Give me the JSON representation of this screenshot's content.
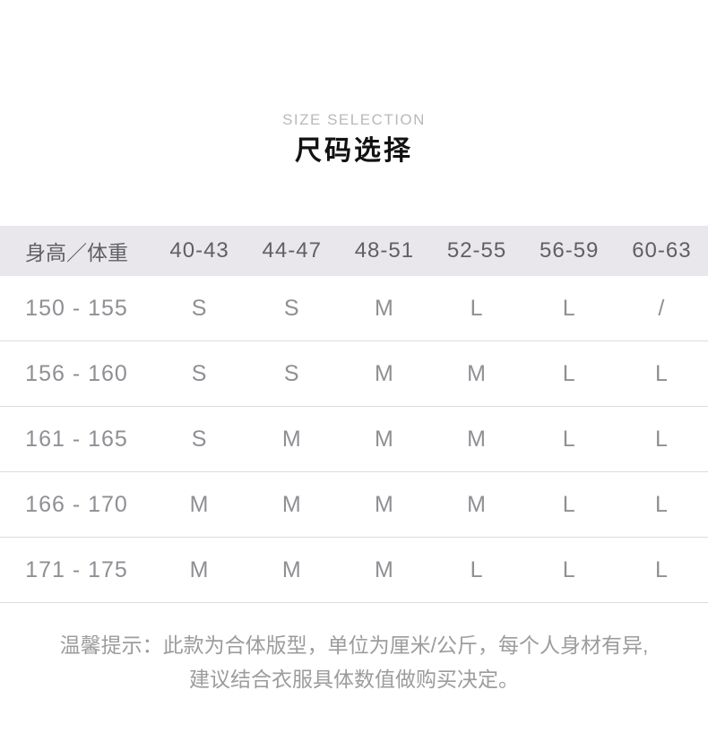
{
  "header": {
    "subtitle": "SIZE SELECTION",
    "title": "尺码选择"
  },
  "table": {
    "columns": [
      "身高／体重",
      "40-43",
      "44-47",
      "48-51",
      "52-55",
      "56-59",
      "60-63"
    ],
    "rows": [
      [
        "150 - 155",
        "S",
        "S",
        "M",
        "L",
        "L",
        "/"
      ],
      [
        "156 - 160",
        "S",
        "S",
        "M",
        "M",
        "L",
        "L"
      ],
      [
        "161 - 165",
        "S",
        "M",
        "M",
        "M",
        "L",
        "L"
      ],
      [
        "166 - 170",
        "M",
        "M",
        "M",
        "M",
        "L",
        "L"
      ],
      [
        "171 - 175",
        "M",
        "M",
        "M",
        "L",
        "L",
        "L"
      ]
    ]
  },
  "note": {
    "line1": "温馨提示：此款为合体版型，单位为厘米/公斤，每个人身材有异,",
    "line2": "建议结合衣服具体数值做购买决定。"
  },
  "colors": {
    "table_header_bg": "#e9e7eb",
    "table_header_text": "#5f5f64",
    "table_cell_text": "#8f8f94",
    "divider": "#dcdcdc",
    "subtitle_text": "#b9b9b9",
    "title_text": "#121212",
    "note_text": "#9c9c9c"
  }
}
